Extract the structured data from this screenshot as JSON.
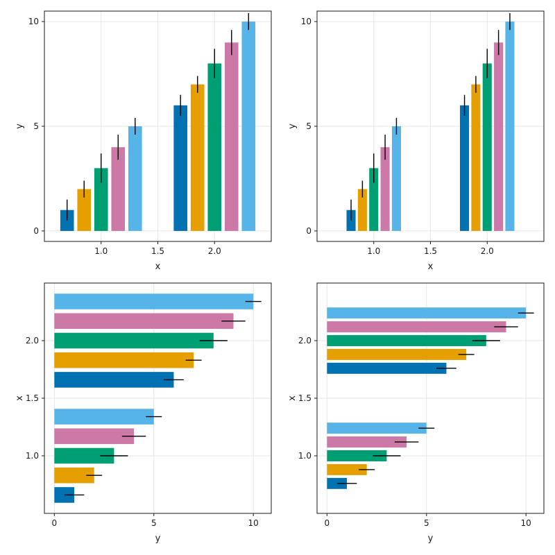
{
  "colors": {
    "palette": [
      "#0072b2",
      "#e69f00",
      "#009e73",
      "#cc79a7",
      "#56b4e9"
    ],
    "errorbar": "#000000",
    "grid": "#e6e6e6",
    "frame": "#1a1a1a"
  },
  "chart_data": [
    {
      "type": "bar",
      "orientation": "vertical",
      "grouping": "dodged, width 0.75",
      "xlabel": "x",
      "ylabel": "y",
      "xlim": [
        0.5,
        2.5
      ],
      "ylim": [
        -0.5,
        10.5
      ],
      "xticks": [
        1.0,
        1.5,
        2.0
      ],
      "xtick_labels": [
        "1.0",
        "1.5",
        "2.0"
      ],
      "yticks": [
        0,
        5,
        10
      ],
      "ytick_labels": [
        "0",
        "5",
        "10"
      ],
      "grid": true,
      "categories": [
        1,
        2
      ],
      "series": [
        {
          "values": [
            1,
            6
          ],
          "errors": [
            0.5,
            0.5
          ]
        },
        {
          "values": [
            2,
            7
          ],
          "errors": [
            0.4,
            0.4
          ]
        },
        {
          "values": [
            3,
            8
          ],
          "errors": [
            0.7,
            0.7
          ]
        },
        {
          "values": [
            4,
            9
          ],
          "errors": [
            0.6,
            0.6
          ]
        },
        {
          "values": [
            5,
            10
          ],
          "errors": [
            0.4,
            0.4
          ]
        }
      ]
    },
    {
      "type": "bar",
      "orientation": "vertical",
      "grouping": "dodged, width 0.5",
      "xlabel": "x",
      "ylabel": "y",
      "xlim": [
        0.5,
        2.5
      ],
      "ylim": [
        -0.5,
        10.5
      ],
      "xticks": [
        1.0,
        1.5,
        2.0
      ],
      "xtick_labels": [
        "1.0",
        "1.5",
        "2.0"
      ],
      "yticks": [
        0,
        5,
        10
      ],
      "ytick_labels": [
        "0",
        "5",
        "10"
      ],
      "grid": true,
      "categories": [
        1,
        2
      ],
      "series": [
        {
          "values": [
            1,
            6
          ],
          "errors": [
            0.5,
            0.5
          ]
        },
        {
          "values": [
            2,
            7
          ],
          "errors": [
            0.4,
            0.4
          ]
        },
        {
          "values": [
            3,
            8
          ],
          "errors": [
            0.7,
            0.7
          ]
        },
        {
          "values": [
            4,
            9
          ],
          "errors": [
            0.6,
            0.6
          ]
        },
        {
          "values": [
            5,
            10
          ],
          "errors": [
            0.4,
            0.4
          ]
        }
      ]
    },
    {
      "type": "bar",
      "orientation": "horizontal",
      "grouping": "dodged, width 0.85",
      "xlabel": "y",
      "ylabel": "x",
      "xlim": [
        -0.5,
        10.9
      ],
      "ylim": [
        0.5,
        2.5
      ],
      "xticks": [
        0,
        5,
        10
      ],
      "xtick_labels": [
        "0",
        "5",
        "10"
      ],
      "yticks": [
        1.0,
        1.5,
        2.0
      ],
      "ytick_labels": [
        "1.0",
        "1.5",
        "2.0"
      ],
      "grid": true,
      "categories": [
        1,
        2
      ],
      "series": [
        {
          "values": [
            1,
            6
          ],
          "errors": [
            0.5,
            0.5
          ]
        },
        {
          "values": [
            2,
            7
          ],
          "errors": [
            0.4,
            0.4
          ]
        },
        {
          "values": [
            3,
            8
          ],
          "errors": [
            0.7,
            0.7
          ]
        },
        {
          "values": [
            4,
            9
          ],
          "errors": [
            0.6,
            0.6
          ]
        },
        {
          "values": [
            5,
            10
          ],
          "errors": [
            0.4,
            0.4
          ]
        }
      ]
    },
    {
      "type": "bar",
      "orientation": "horizontal",
      "grouping": "dodged, width 0.6",
      "xlabel": "y",
      "ylabel": "x",
      "xlim": [
        -0.5,
        10.9
      ],
      "ylim": [
        0.5,
        2.5
      ],
      "xticks": [
        0,
        5,
        10
      ],
      "xtick_labels": [
        "0",
        "5",
        "10"
      ],
      "yticks": [
        1.0,
        1.5,
        2.0
      ],
      "ytick_labels": [
        "1.0",
        "1.5",
        "2.0"
      ],
      "grid": true,
      "categories": [
        1,
        2
      ],
      "series": [
        {
          "values": [
            1,
            6
          ],
          "errors": [
            0.5,
            0.5
          ]
        },
        {
          "values": [
            2,
            7
          ],
          "errors": [
            0.4,
            0.4
          ]
        },
        {
          "values": [
            3,
            8
          ],
          "errors": [
            0.7,
            0.7
          ]
        },
        {
          "values": [
            4,
            9
          ],
          "errors": [
            0.6,
            0.6
          ]
        },
        {
          "values": [
            5,
            10
          ],
          "errors": [
            0.4,
            0.4
          ]
        }
      ]
    }
  ]
}
